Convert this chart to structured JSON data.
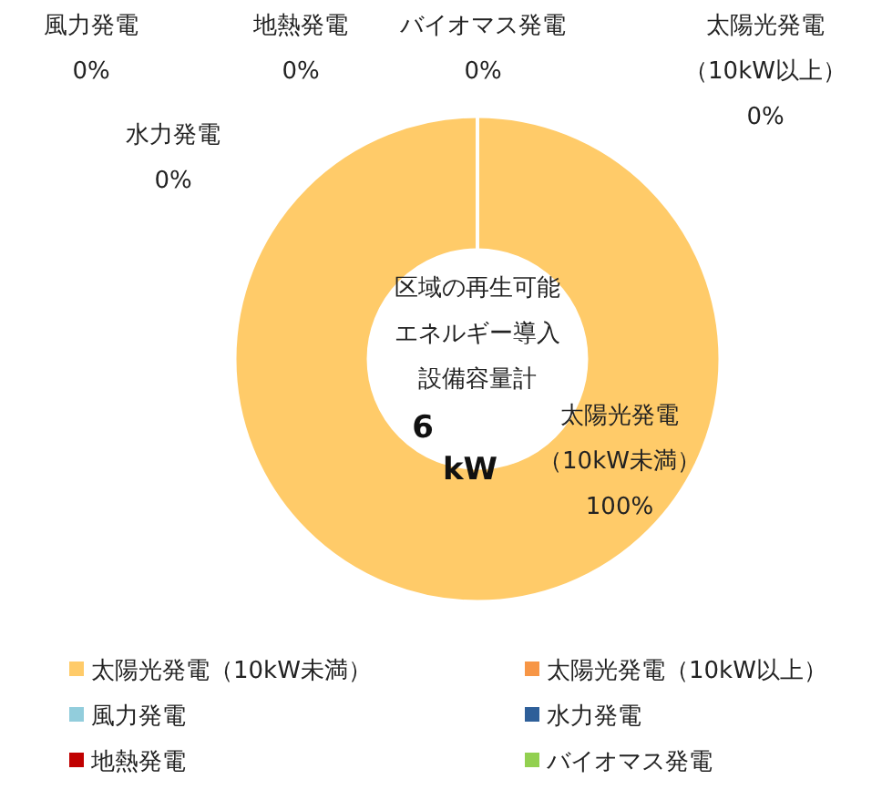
{
  "chart_data": {
    "type": "donut",
    "title": "区域の再生可能エネルギー導入設備容量計",
    "annotations": [
      "6",
      "kW"
    ],
    "categories": [
      "太陽光発電（10kW未満）",
      "太陽光発電（10kW以上）",
      "風力発電",
      "水力発電",
      "地熱発電",
      "バイオマス発電"
    ],
    "values": [
      100,
      0,
      0,
      0,
      0,
      0
    ],
    "value_labels": [
      "100%",
      "0%",
      "0%",
      "0%",
      "0%",
      "0%"
    ],
    "colors": [
      "#ffcb69",
      "#f79646",
      "#92cddc",
      "#2e5f99",
      "#c00000",
      "#92d050"
    ],
    "legend": "bottom"
  }
}
